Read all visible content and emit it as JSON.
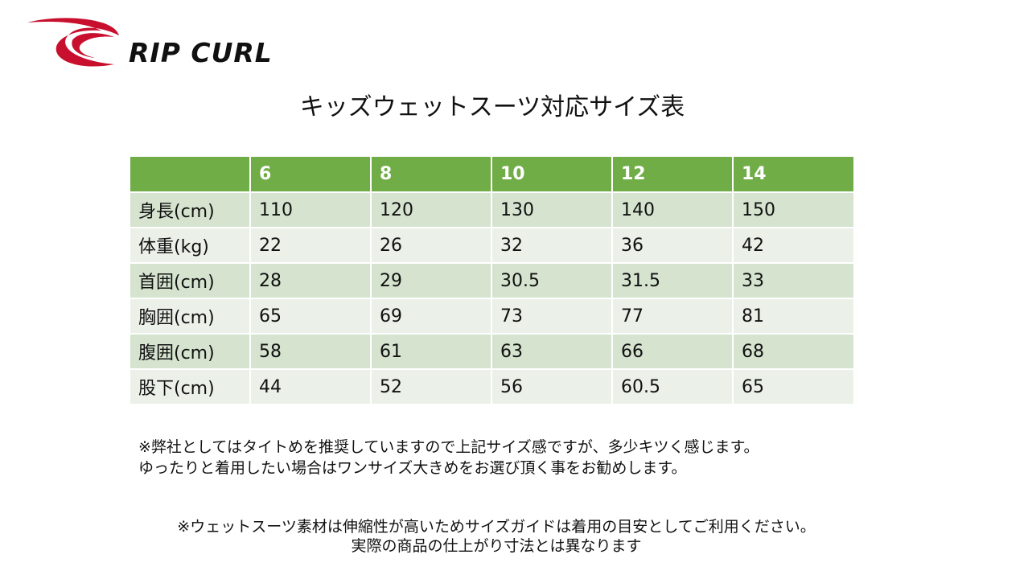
{
  "brand": {
    "logo_text": "RIP CURL",
    "logo_color": "#c8102e"
  },
  "title": "キッズウェットスーツ対応サイズ表",
  "table": {
    "header_color": "#70ad47",
    "columns": [
      "",
      "6",
      "8",
      "10",
      "12",
      "14"
    ],
    "rows": [
      [
        "身長(cm)",
        "110",
        "120",
        "130",
        "140",
        "150"
      ],
      [
        "体重(kg)",
        "22",
        "26",
        "32",
        "36",
        "42"
      ],
      [
        "首囲(cm)",
        "28",
        "29",
        "30.5",
        "31.5",
        "33"
      ],
      [
        "胸囲(cm)",
        "65",
        "69",
        "73",
        "77",
        "81"
      ],
      [
        "腹囲(cm)",
        "58",
        "61",
        "63",
        "66",
        "68"
      ],
      [
        "股下(cm)",
        "44",
        "52",
        "56",
        "60.5",
        "65"
      ]
    ]
  },
  "notes": {
    "note1_line1": "※弊社としてはタイトめを推奨していますので上記サイズ感ですが、多少キツく感じます。",
    "note1_line2": "ゆったりと着用したい場合はワンサイズ大きめをお選び頂く事をお勧めします。",
    "note2_line1": "※ウェットスーツ素材は伸縮性が高いためサイズガイドは着用の目安としてご利用ください。",
    "note2_line2": "実際の商品の仕上がり寸法とは異なります"
  }
}
